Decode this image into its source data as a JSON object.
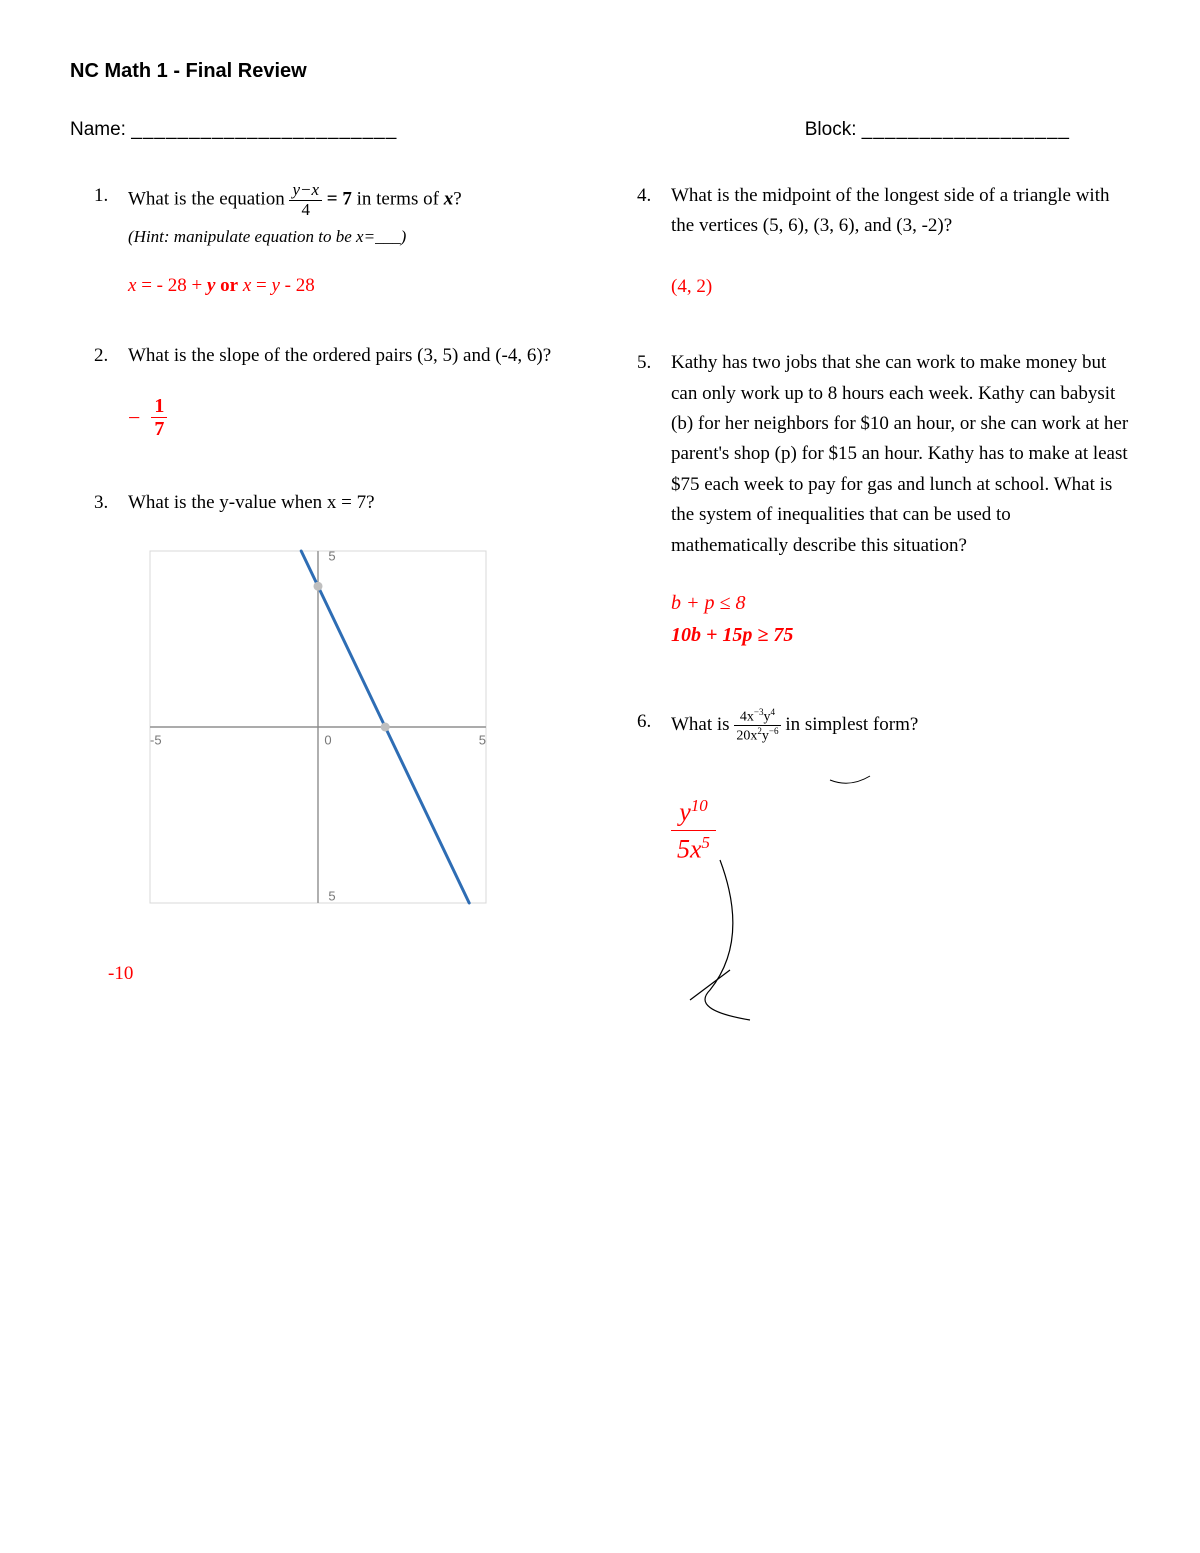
{
  "title": "NC Math 1 - Final Review",
  "header": {
    "name_label": "Name:",
    "name_blank": "_______________________",
    "block_label": "Block:",
    "block_blank": "__________________"
  },
  "q1": {
    "num": "1.",
    "text_a": "What is the equation ",
    "frac_num": "y−x",
    "frac_den": "4",
    "text_b": " = 7 ",
    "text_c": " in terms of ",
    "var": "x",
    "text_d": "?",
    "hint": "(Hint: manipulate equation to be x=___)",
    "answer": "x = - 28 + y or x = y - 28"
  },
  "q2": {
    "num": "2.",
    "text": "What is the slope of the ordered pairs (3, 5) and (-4, 6)?",
    "ans_neg": "−",
    "ans_num": "1",
    "ans_den": "7"
  },
  "q3": {
    "num": "3.",
    "text": "What is the y-value when x = 7?",
    "answer": "-10",
    "graph": {
      "xmin": -5,
      "xmax": 5,
      "ymin": -5,
      "ymax": 5,
      "line_p1": [
        -0.5,
        5
      ],
      "line_p2": [
        4.5,
        -5
      ],
      "points": [
        [
          0,
          4
        ],
        [
          2,
          0
        ]
      ],
      "line_color": "#2e6db4",
      "axis_color": "#8a8a8a",
      "grid_color": "#d8d8d8",
      "point_color": "#bfbfbf",
      "tick_labels": [
        "-5",
        "0",
        "5"
      ]
    }
  },
  "q4": {
    "num": "4.",
    "text": "What is the midpoint of the longest side of a triangle with the vertices  (5, 6), (3, 6), and (3, -2)?",
    "answer": "(4, 2)"
  },
  "q5": {
    "num": "5.",
    "text": "Kathy has two jobs that she can work to make money but can only work up to 8 hours each week. Kathy can babysit (b) for her neighbors for $10 an hour, or she can work at her parent's shop (p) for $15 an hour. Kathy has to make at least $75 each week to pay for gas and lunch at school. What is the system of inequalities that can be used to mathematically describe this situation?",
    "ans_line1": "b  +  p  ≤  8",
    "ans_line2": "10b  +  15p ≥ 75"
  },
  "q6": {
    "num": "6.",
    "text_a": "What is ",
    "frac_num_html": "4x<span class='sup-neg'>−3</span>y<span class='sup'>4</span>",
    "frac_den_html": "20x<span class='sup'>2</span>y<span class='sup-neg'>−6</span>",
    "text_b": "  in simplest form?",
    "ans_num_html": "y<span class='sup'>10</span>",
    "ans_den_html": "5x<span class='sup'>5</span>"
  }
}
